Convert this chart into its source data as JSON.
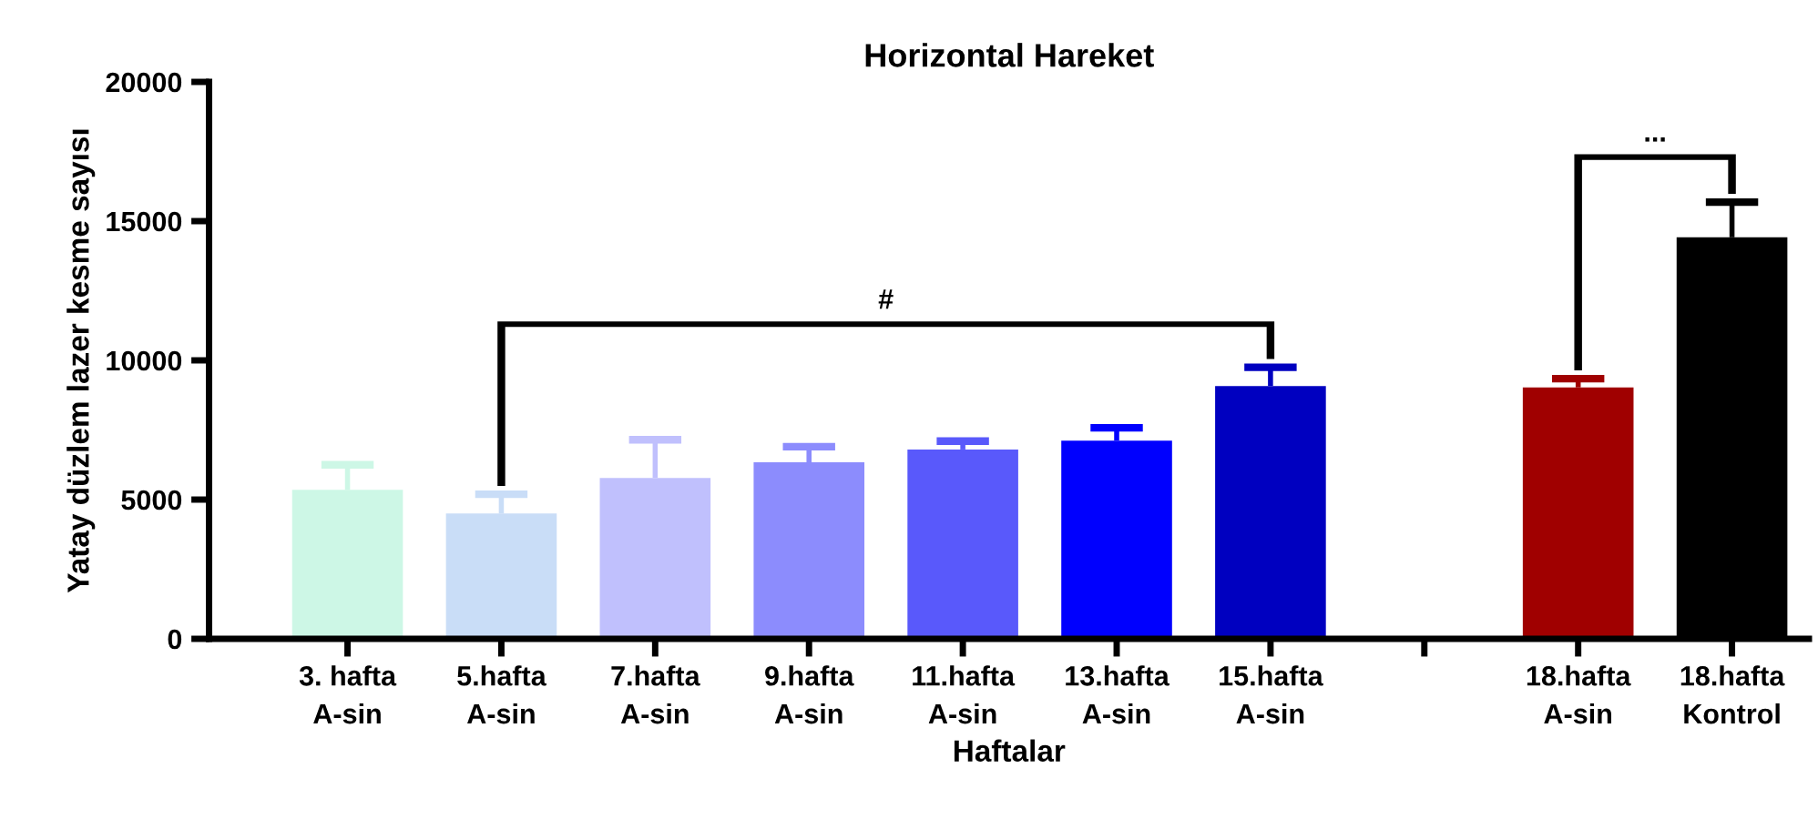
{
  "chart_data": {
    "type": "bar",
    "title": "Horizontal Hareket",
    "xlabel": "Haftalar",
    "ylabel": "Yatay düzlem lazer kesme sayısı",
    "categories": [
      "3. hafta\nA-sin",
      "5.hafta\nA-sin",
      "7.hafta\nA-sin",
      "9.hafta\nA-sin",
      "11.hafta\nA-sin",
      "13.hafta\nA-sin",
      "15.hafta\nA-sin",
      null,
      "18.hafta\nA-sin",
      "18.hafta\nKontrol"
    ],
    "values": [
      5350,
      4500,
      5780,
      6340,
      6800,
      7120,
      9080,
      null,
      9030,
      14420
    ],
    "errors": [
      [
        5350,
        6250
      ],
      [
        4500,
        5190
      ],
      [
        5780,
        7150
      ],
      [
        6340,
        6900
      ],
      [
        6800,
        7100
      ],
      [
        7120,
        7580
      ],
      [
        9080,
        9750
      ],
      null,
      [
        9030,
        9340
      ],
      [
        14420,
        15680
      ]
    ],
    "colors": [
      "#cdf7e6",
      "#c9ddf7",
      "#c0c0fd",
      "#8c8cfd",
      "#5959fb",
      "#0000fe",
      "#0000c0",
      "#ffffff",
      "#a00000",
      "#000000"
    ],
    "ylim": [
      0,
      20000
    ],
    "yticks": [
      0,
      5000,
      10000,
      15000,
      20000
    ],
    "grid": false,
    "annotations": [
      "#",
      "..."
    ]
  }
}
